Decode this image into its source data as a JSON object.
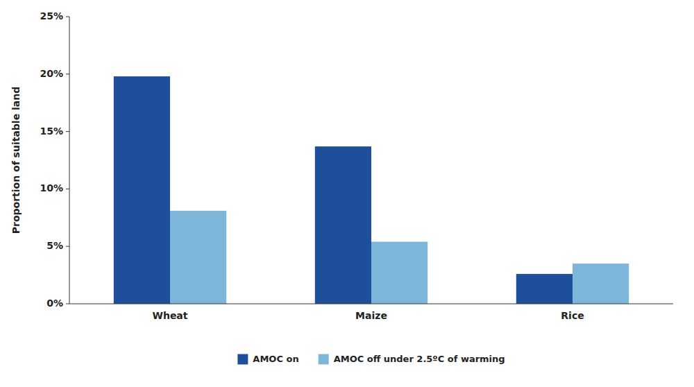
{
  "chart_data": {
    "type": "bar",
    "ylabel": "Proportion of suitable land",
    "categories": [
      "Wheat",
      "Maize",
      "Rice"
    ],
    "series": [
      {
        "name": "AMOC on",
        "color": "#1f4e9b",
        "values": [
          19.8,
          13.7,
          2.6
        ]
      },
      {
        "name": "AMOC off under 2.5ºC of warming",
        "color": "#7eb6d9",
        "values": [
          8.1,
          5.4,
          3.5
        ]
      }
    ],
    "ylim": [
      0,
      25
    ],
    "yticks": [
      {
        "value": 0,
        "label": "0%"
      },
      {
        "value": 5,
        "label": "5%"
      },
      {
        "value": 10,
        "label": "10%"
      },
      {
        "value": 15,
        "label": "15%"
      },
      {
        "value": 20,
        "label": "20%"
      },
      {
        "value": 25,
        "label": "25%"
      }
    ],
    "grid": false,
    "legend": "bottom"
  }
}
